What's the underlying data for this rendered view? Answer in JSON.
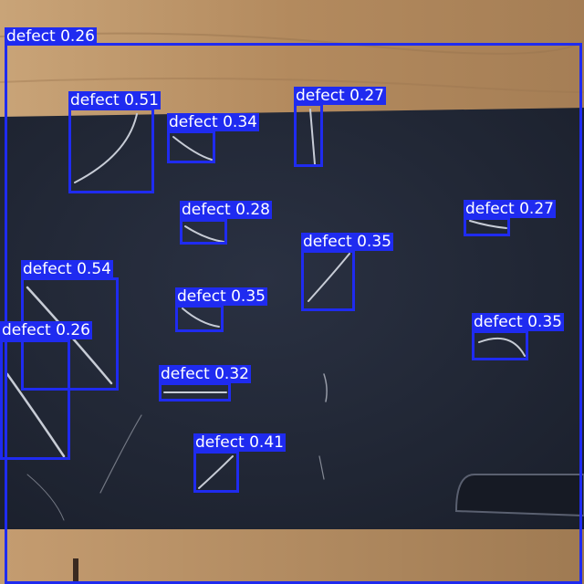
{
  "image": {
    "description_colors": {
      "wood": "#b38a5e",
      "wood_dark": "#8e6a45",
      "panel": "#1f2432",
      "panel_edge": "#161a24",
      "box": "#1f2bf0",
      "label_text": "#ffffff"
    }
  },
  "detections": [
    {
      "label": "defect 0.26"
    },
    {
      "label": "defect 0.51"
    },
    {
      "label": "defect 0.34"
    },
    {
      "label": "defect 0.27"
    },
    {
      "label": "defect 0.28"
    },
    {
      "label": "defect 0.27"
    },
    {
      "label": "defect 0.35"
    },
    {
      "label": "defect 0.54"
    },
    {
      "label": "defect 0.35"
    },
    {
      "label": "defect 0.35"
    },
    {
      "label": "defect 0.26"
    },
    {
      "label": "defect 0.32"
    },
    {
      "label": "defect 0.41"
    }
  ]
}
